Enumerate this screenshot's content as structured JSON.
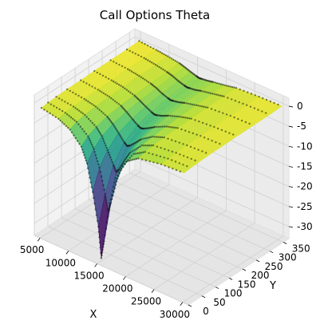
{
  "chart_data": {
    "type": "surface3d",
    "title": "Call Options Theta",
    "xlabel": "X",
    "ylabel": "Y",
    "zlabel": "",
    "x_ticks": [
      5000,
      10000,
      15000,
      20000,
      25000,
      30000
    ],
    "y_ticks": [
      0,
      50,
      100,
      150,
      200,
      250,
      300,
      350
    ],
    "z_ticks": [
      0,
      -5,
      -10,
      -15,
      -20,
      -25,
      -30
    ],
    "xlim": [
      4000,
      31000
    ],
    "ylim": [
      0,
      370
    ],
    "zlim": [
      -33,
      2
    ],
    "colormap": "viridis",
    "grid": true,
    "surface_rows": [
      {
        "y": 5,
        "x": [
          5000,
          8000,
          10000,
          12000,
          13000,
          14000,
          15000,
          15500,
          16000,
          17000,
          18000,
          20000,
          22000,
          26000,
          30000
        ],
        "z": [
          -0.8,
          -1.6,
          -3.0,
          -6.0,
          -9.5,
          -16.0,
          -24.0,
          -31.5,
          -27.0,
          -17.0,
          -10.0,
          -4.5,
          -2.5,
          -1.4,
          -1.0
        ]
      },
      {
        "y": 30,
        "x": [
          5000,
          8000,
          10000,
          12000,
          13000,
          14000,
          15000,
          15500,
          16000,
          17000,
          18000,
          20000,
          22000,
          26000,
          30000
        ],
        "z": [
          -0.6,
          -1.2,
          -2.2,
          -4.5,
          -7.0,
          -11.0,
          -17.0,
          -21.0,
          -18.5,
          -12.5,
          -8.0,
          -3.8,
          -2.0,
          -1.1,
          -0.8
        ]
      },
      {
        "y": 60,
        "x": [
          5000,
          8000,
          10000,
          12000,
          13000,
          14000,
          15000,
          15500,
          16000,
          17000,
          18000,
          20000,
          22000,
          26000,
          30000
        ],
        "z": [
          -0.5,
          -1.0,
          -1.8,
          -3.5,
          -5.2,
          -8.0,
          -11.0,
          -12.5,
          -11.5,
          -8.5,
          -6.0,
          -3.0,
          -1.7,
          -1.0,
          -0.7
        ]
      },
      {
        "y": 100,
        "x": [
          5000,
          8000,
          10000,
          12000,
          13000,
          14000,
          15000,
          15500,
          16000,
          17000,
          18000,
          20000,
          22000,
          26000,
          30000
        ],
        "z": [
          -0.4,
          -0.9,
          -1.5,
          -2.7,
          -3.9,
          -5.5,
          -7.2,
          -7.8,
          -7.4,
          -6.0,
          -4.5,
          -2.6,
          -1.5,
          -0.9,
          -0.6
        ]
      },
      {
        "y": 150,
        "x": [
          5000,
          8000,
          10000,
          12000,
          13000,
          14000,
          15000,
          15500,
          16000,
          17000,
          18000,
          20000,
          22000,
          26000,
          30000
        ],
        "z": [
          -0.4,
          -0.8,
          -1.3,
          -2.2,
          -3.1,
          -4.2,
          -5.2,
          -5.6,
          -5.4,
          -4.6,
          -3.7,
          -2.3,
          -1.4,
          -0.8,
          -0.6
        ]
      },
      {
        "y": 200,
        "x": [
          5000,
          8000,
          10000,
          12000,
          13000,
          14000,
          15000,
          15500,
          16000,
          17000,
          18000,
          20000,
          22000,
          26000,
          30000
        ],
        "z": [
          -0.3,
          -0.7,
          -1.1,
          -1.9,
          -2.6,
          -3.4,
          -4.1,
          -4.4,
          -4.3,
          -3.8,
          -3.1,
          -2.1,
          -1.3,
          -0.8,
          -0.5
        ]
      },
      {
        "y": 260,
        "x": [
          5000,
          8000,
          10000,
          12000,
          13000,
          14000,
          15000,
          15500,
          16000,
          17000,
          18000,
          20000,
          22000,
          26000,
          30000
        ],
        "z": [
          -0.3,
          -0.6,
          -1.0,
          -1.6,
          -2.1,
          -2.8,
          -3.3,
          -3.5,
          -3.4,
          -3.1,
          -2.6,
          -1.9,
          -1.2,
          -0.7,
          -0.5
        ]
      },
      {
        "y": 320,
        "x": [
          5000,
          8000,
          10000,
          12000,
          13000,
          14000,
          15000,
          15500,
          16000,
          17000,
          18000,
          20000,
          22000,
          26000,
          30000
        ],
        "z": [
          -0.3,
          -0.5,
          -0.9,
          -1.4,
          -1.8,
          -2.4,
          -2.8,
          -3.0,
          -2.9,
          -2.7,
          -2.3,
          -1.7,
          -1.1,
          -0.7,
          -0.5
        ]
      },
      {
        "y": 365,
        "x": [
          5000,
          8000,
          10000,
          12000,
          13000,
          14000,
          15000,
          15500,
          16000,
          17000,
          18000,
          20000,
          22000,
          26000,
          30000
        ],
        "z": [
          -0.2,
          -0.5,
          -0.8,
          -1.2,
          -1.6,
          -2.1,
          -2.5,
          -2.7,
          -2.6,
          -2.4,
          -2.1,
          -1.6,
          -1.0,
          -0.6,
          -0.4
        ]
      }
    ]
  }
}
